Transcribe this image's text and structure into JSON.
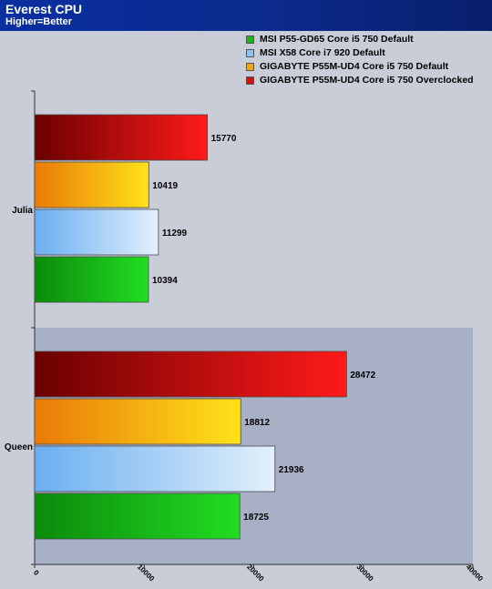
{
  "header": {
    "title": "Everest CPU",
    "subtitle": "Higher=Better"
  },
  "chart_data": {
    "type": "bar",
    "orientation": "horizontal",
    "categories": [
      "Julia",
      "Queen"
    ],
    "series": [
      {
        "name": "MSI P55-GD65 Core i5 750 Default",
        "color": "#1fb31f",
        "values": [
          10394,
          18725
        ]
      },
      {
        "name": "MSI X58 Core i7 920 Default",
        "color": "#8cc4f2",
        "values": [
          11299,
          21936
        ]
      },
      {
        "name": "GIGABYTE P55M-UD4 Core i5 750 Default",
        "color": "#f2a51a",
        "values": [
          10419,
          18812
        ]
      },
      {
        "name": "GIGABYTE P55M-UD4 Core i5 750 Overclocked",
        "color": "#cc1111",
        "values": [
          15770,
          28472
        ]
      }
    ],
    "xlim": [
      0,
      40000
    ],
    "xticks": [
      0,
      10000,
      20000,
      30000,
      40000
    ],
    "legend_position": "top-right",
    "grid": false
  }
}
